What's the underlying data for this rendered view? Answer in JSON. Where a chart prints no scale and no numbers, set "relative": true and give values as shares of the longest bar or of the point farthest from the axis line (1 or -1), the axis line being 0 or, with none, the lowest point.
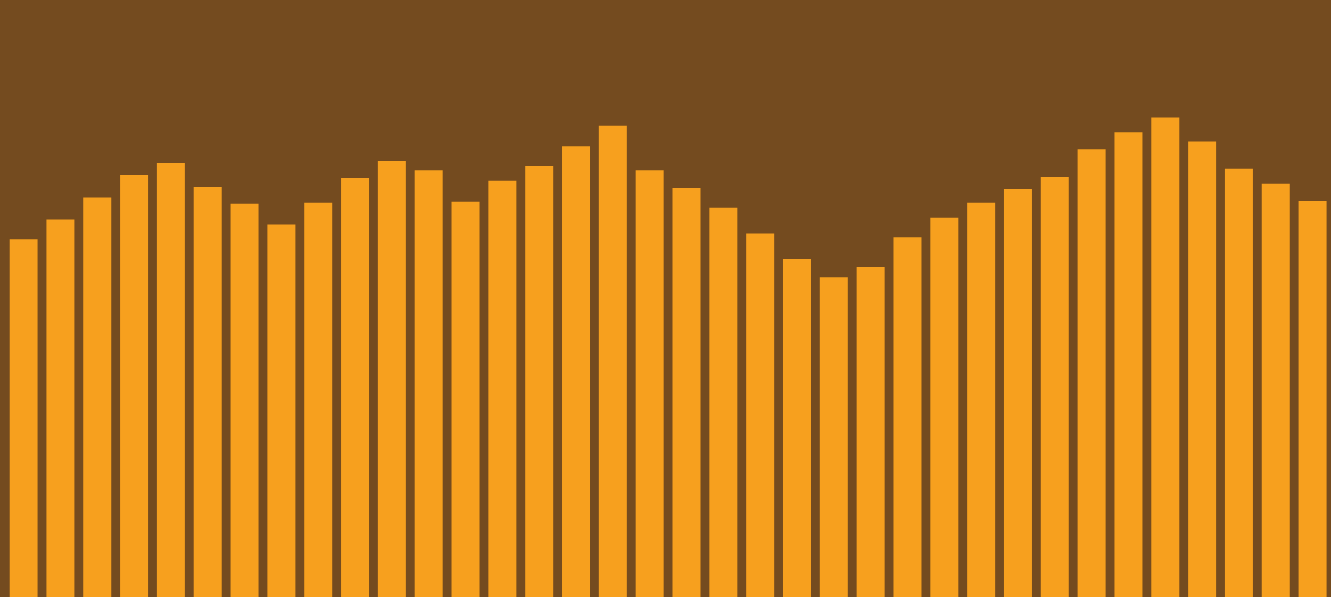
{
  "chart_data": {
    "type": "bar",
    "relative": true,
    "color": "#f7a01e",
    "categories": [
      null,
      null,
      null,
      null,
      null,
      null,
      null,
      null,
      null,
      null,
      null,
      null,
      null,
      null,
      null,
      null,
      null,
      null,
      null,
      null,
      null,
      null,
      null,
      null,
      null,
      null,
      null,
      null,
      null,
      null,
      null,
      null,
      null,
      null,
      null,
      null
    ],
    "values": [
      0.746,
      0.787,
      0.833,
      0.88,
      0.905,
      0.855,
      0.82,
      0.777,
      0.822,
      0.874,
      0.909,
      0.89,
      0.824,
      0.868,
      0.899,
      0.94,
      0.983,
      0.89,
      0.853,
      0.812,
      0.758,
      0.705,
      0.667,
      0.688,
      0.75,
      0.791,
      0.822,
      0.851,
      0.876,
      0.934,
      0.969,
      1,
      0.95,
      0.893,
      0.862,
      0.826
    ]
  }
}
